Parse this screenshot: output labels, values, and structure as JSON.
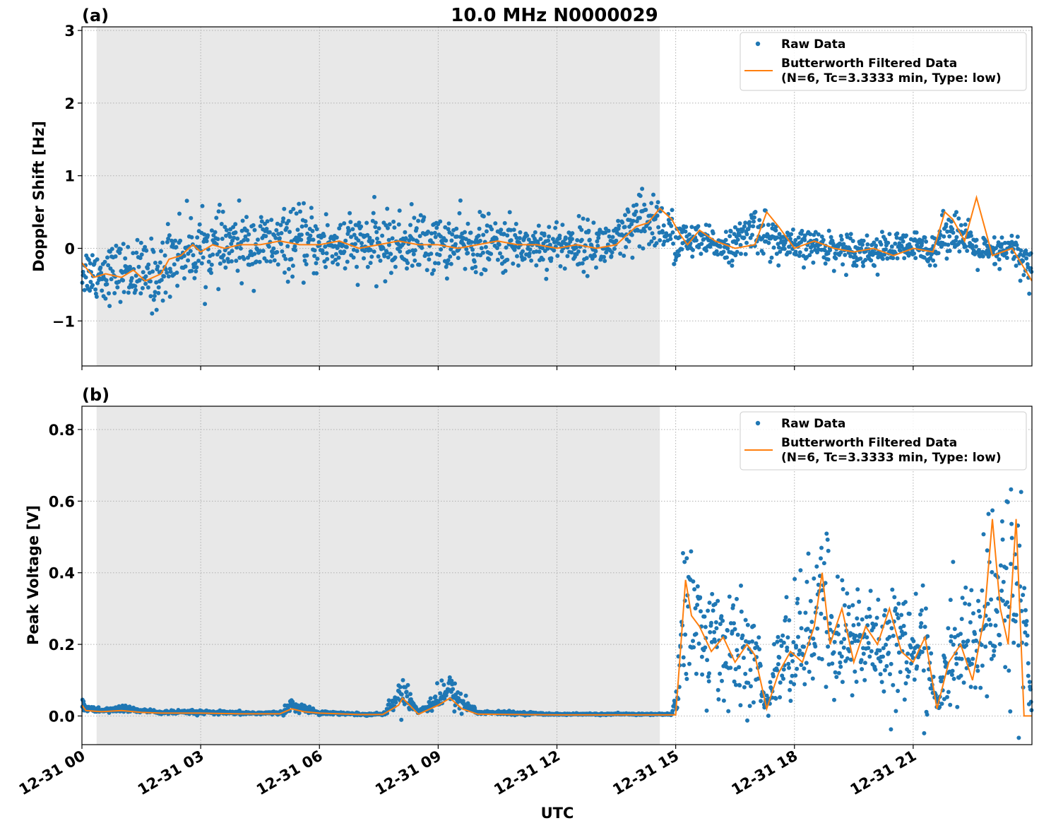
{
  "title": "10.0 MHz N0000029",
  "xlabel": "UTC",
  "x_ticks": [
    "12-31 00",
    "12-31 03",
    "12-31 06",
    "12-31 09",
    "12-31 12",
    "12-31 15",
    "12-31 18",
    "12-31 21"
  ],
  "colors": {
    "raw": "#1f77b4",
    "filtered": "#ff7f0e",
    "night_shade": "#e8e8e8",
    "grid": "#b0b0b0"
  },
  "legend": {
    "raw": "Raw Data",
    "filtered_line1": "Butterworth Filtered Data",
    "filtered_line2": "(N=6, Tc=3.3333 min, Type: low)",
    "placement": "top-right"
  },
  "chart_data": [
    {
      "type": "scatter",
      "panel_label": "(a)",
      "ylabel": "Doppler Shift [Hz]",
      "xlim_hours": [
        0,
        24
      ],
      "ylim": [
        -1.62,
        3.05
      ],
      "y_ticks": [
        -1,
        0,
        1,
        2,
        3
      ],
      "shaded_region_hours": [
        0.37,
        14.6
      ],
      "series": [
        {
          "name": "Raw Data",
          "x_hours": [
            0,
            0.5,
            1,
            1.5,
            2,
            2.2,
            2.5,
            3,
            3.5,
            4,
            4.5,
            5,
            5.5,
            6,
            6.5,
            7,
            7.5,
            8,
            8.5,
            9,
            9.5,
            10,
            10.5,
            11,
            11.5,
            12,
            12.5,
            13,
            13.5,
            14,
            14.5,
            15,
            15.5,
            16,
            16.5,
            17,
            17.5,
            18,
            18.5,
            19,
            19.5,
            20,
            20.5,
            21,
            21.5,
            22,
            22.5,
            23,
            23.5,
            24
          ],
          "center": [
            -0.3,
            -0.35,
            -0.3,
            -0.35,
            -0.4,
            -0.1,
            -0.05,
            0,
            0,
            0.05,
            0.05,
            0.05,
            0.1,
            0.05,
            0.05,
            0.05,
            0.05,
            0.05,
            0.1,
            0.05,
            0.05,
            0.05,
            0.05,
            0.05,
            0.05,
            0.05,
            0.05,
            0.05,
            0.05,
            0.3,
            0.4,
            0.1,
            0.1,
            0.05,
            0.05,
            0.3,
            0.1,
            0,
            0.05,
            0,
            0,
            -0.05,
            0,
            0,
            0,
            0.3,
            0,
            -0.1,
            0,
            -0.3
          ],
          "spread": [
            0.3,
            0.35,
            0.35,
            0.4,
            0.45,
            0.45,
            0.45,
            0.4,
            0.4,
            0.4,
            0.4,
            0.4,
            0.4,
            0.4,
            0.4,
            0.35,
            0.4,
            0.35,
            0.4,
            0.35,
            0.35,
            0.35,
            0.35,
            0.3,
            0.3,
            0.3,
            0.3,
            0.3,
            0.3,
            0.4,
            0.4,
            0.3,
            0.2,
            0.2,
            0.2,
            0.3,
            0.25,
            0.2,
            0.2,
            0.2,
            0.2,
            0.2,
            0.2,
            0.2,
            0.2,
            0.3,
            0.2,
            0.2,
            0.2,
            0.3
          ]
        },
        {
          "name": "Butterworth Filtered Data",
          "x_hours": [
            0,
            0.3,
            0.6,
            1,
            1.3,
            1.6,
            2,
            2.2,
            2.5,
            2.8,
            3,
            3.3,
            3.6,
            4,
            4.5,
            5,
            5.5,
            6,
            6.5,
            7,
            7.5,
            8,
            8.5,
            9,
            9.5,
            10,
            10.5,
            11,
            11.5,
            12,
            12.5,
            13,
            13.5,
            14,
            14.3,
            14.6,
            14.9,
            15.1,
            15.3,
            15.6,
            16,
            16.5,
            17,
            17.3,
            17.6,
            18,
            18.5,
            19,
            19.5,
            20,
            20.5,
            21,
            21.5,
            21.8,
            22,
            22.3,
            22.6,
            23,
            23.5,
            24
          ],
          "y": [
            -0.2,
            -0.4,
            -0.35,
            -0.4,
            -0.3,
            -0.45,
            -0.35,
            -0.15,
            -0.1,
            0.05,
            -0.05,
            0.05,
            0,
            0.05,
            0.05,
            0.1,
            0.05,
            0.05,
            0.1,
            0,
            0.05,
            0.1,
            0.05,
            0.05,
            0,
            0.05,
            0.1,
            0.05,
            0.05,
            0,
            0.05,
            0,
            0.05,
            0.3,
            0.35,
            0.55,
            0.4,
            0.2,
            0.05,
            0.25,
            0.1,
            0,
            0.05,
            0.5,
            0.3,
            0,
            0.1,
            0,
            -0.05,
            0,
            -0.1,
            0,
            -0.05,
            0.5,
            0.4,
            0.1,
            0.7,
            -0.1,
            0,
            -0.45
          ]
        }
      ]
    },
    {
      "type": "scatter",
      "panel_label": "(b)",
      "ylabel": "Peak Voltage [V]",
      "xlim_hours": [
        0,
        24
      ],
      "ylim": [
        -0.08,
        0.865
      ],
      "y_ticks": [
        0.0,
        0.2,
        0.4,
        0.6,
        0.8
      ],
      "y_tick_labels": [
        "0.0",
        "0.2",
        "0.4",
        "0.6",
        "0.8"
      ],
      "shaded_region_hours": [
        0.37,
        14.6
      ],
      "series": [
        {
          "name": "Raw Data",
          "x_hours": [
            0,
            0.1,
            0.5,
            1,
            1.5,
            2,
            3,
            4,
            5,
            5.3,
            5.6,
            6,
            7,
            7.6,
            8,
            8.1,
            8.5,
            9,
            9.3,
            9.6,
            10,
            11,
            12,
            13,
            14,
            14.5,
            14.9,
            15.05,
            15.2,
            15.4,
            15.7,
            16,
            16.5,
            17,
            17.3,
            17.6,
            18,
            18.5,
            18.8,
            19,
            19.5,
            20,
            20.5,
            21,
            21.3,
            21.6,
            21.9,
            22.3,
            22.8,
            23.2,
            23.5,
            23.8,
            24
          ],
          "center": [
            0.05,
            0.02,
            0.015,
            0.02,
            0.015,
            0.01,
            0.01,
            0.008,
            0.008,
            0.03,
            0.02,
            0.01,
            0.005,
            0.005,
            0.05,
            0.08,
            0.01,
            0.05,
            0.07,
            0.04,
            0.01,
            0.008,
            0.005,
            0.005,
            0.005,
            0.005,
            0.005,
            0.05,
            0.35,
            0.3,
            0.2,
            0.22,
            0.18,
            0.15,
            0.03,
            0.15,
            0.2,
            0.25,
            0.3,
            0.2,
            0.22,
            0.2,
            0.22,
            0.18,
            0.2,
            0.03,
            0.15,
            0.2,
            0.25,
            0.3,
            0.4,
            0.3,
            0.005
          ],
          "spread": [
            0.05,
            0.01,
            0.005,
            0.01,
            0.005,
            0.005,
            0.005,
            0.004,
            0.004,
            0.015,
            0.01,
            0.005,
            0.003,
            0.003,
            0.03,
            0.05,
            0.005,
            0.03,
            0.04,
            0.03,
            0.005,
            0.004,
            0.002,
            0.002,
            0.002,
            0.002,
            0.002,
            0.04,
            0.25,
            0.22,
            0.15,
            0.15,
            0.15,
            0.12,
            0.02,
            0.12,
            0.15,
            0.18,
            0.22,
            0.15,
            0.15,
            0.15,
            0.15,
            0.12,
            0.15,
            0.02,
            0.12,
            0.15,
            0.2,
            0.25,
            0.3,
            0.25,
            0.003
          ]
        },
        {
          "name": "Butterworth Filtered Data",
          "x_hours": [
            0,
            0.1,
            0.5,
            1,
            1.5,
            2,
            3,
            4,
            5,
            5.3,
            5.6,
            6,
            7,
            7.6,
            8,
            8.1,
            8.5,
            9,
            9.3,
            9.6,
            10,
            11,
            12,
            13,
            14,
            14.6,
            15,
            15.1,
            15.25,
            15.4,
            15.6,
            15.9,
            16.2,
            16.5,
            16.8,
            17,
            17.3,
            17.6,
            17.9,
            18.2,
            18.5,
            18.7,
            18.9,
            19.2,
            19.5,
            19.8,
            20.1,
            20.4,
            20.7,
            21,
            21.3,
            21.6,
            21.9,
            22.2,
            22.5,
            22.8,
            23,
            23.2,
            23.4,
            23.6,
            23.8,
            24
          ],
          "y": [
            0.03,
            0.015,
            0.012,
            0.015,
            0.01,
            0.008,
            0.008,
            0.006,
            0.006,
            0.02,
            0.012,
            0.008,
            0.004,
            0.004,
            0.03,
            0.05,
            0.005,
            0.03,
            0.05,
            0.02,
            0.005,
            0.004,
            0.003,
            0.003,
            0.003,
            0.003,
            0.003,
            0.15,
            0.38,
            0.28,
            0.25,
            0.18,
            0.22,
            0.15,
            0.2,
            0.17,
            0.02,
            0.12,
            0.18,
            0.15,
            0.25,
            0.4,
            0.2,
            0.3,
            0.15,
            0.25,
            0.2,
            0.3,
            0.18,
            0.15,
            0.22,
            0.02,
            0.15,
            0.2,
            0.1,
            0.28,
            0.55,
            0.3,
            0.2,
            0.55,
            0.0,
            0.0
          ]
        }
      ]
    }
  ]
}
